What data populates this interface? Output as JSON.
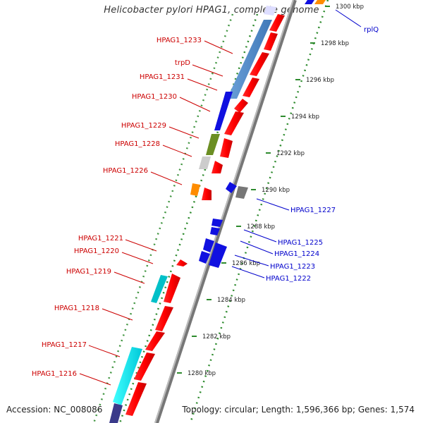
{
  "title": "Helicobacter pylori HPAG1, complete genome",
  "accession": "Accession: NC_008086",
  "summary": "Topology: circular; Length: 1,596,366 bp; Genes: 1,574",
  "colors": {
    "scale_dots": "#2e8b2e",
    "backbone": "#8c8c8c",
    "label_left": "#cc0000",
    "label_right": "#0000cc"
  },
  "scale_ticks": [
    "1300 kbp",
    "1298 kbp",
    "1296 kbp",
    "1294 kbp",
    "1292 kbp",
    "1290 kbp",
    "1288 kbp",
    "1286 kbp",
    "1284 kbp",
    "1282 kbp",
    "1280 kbp"
  ],
  "labels_left": [
    "HPAG1_1233",
    "trpD",
    "HPAG1_1231",
    "HPAG1_1230",
    "HPAG1_1229",
    "HPAG1_1228",
    "HPAG1_1226",
    "HPAG1_1221",
    "HPAG1_1220",
    "HPAG1_1219",
    "HPAG1_1218",
    "HPAG1_1217",
    "HPAG1_1216"
  ],
  "labels_right": [
    "rplQ",
    "HPAG1_1227",
    "HPAG1_1225",
    "HPAG1_1224",
    "HPAG1_1223",
    "HPAG1_1222"
  ]
}
